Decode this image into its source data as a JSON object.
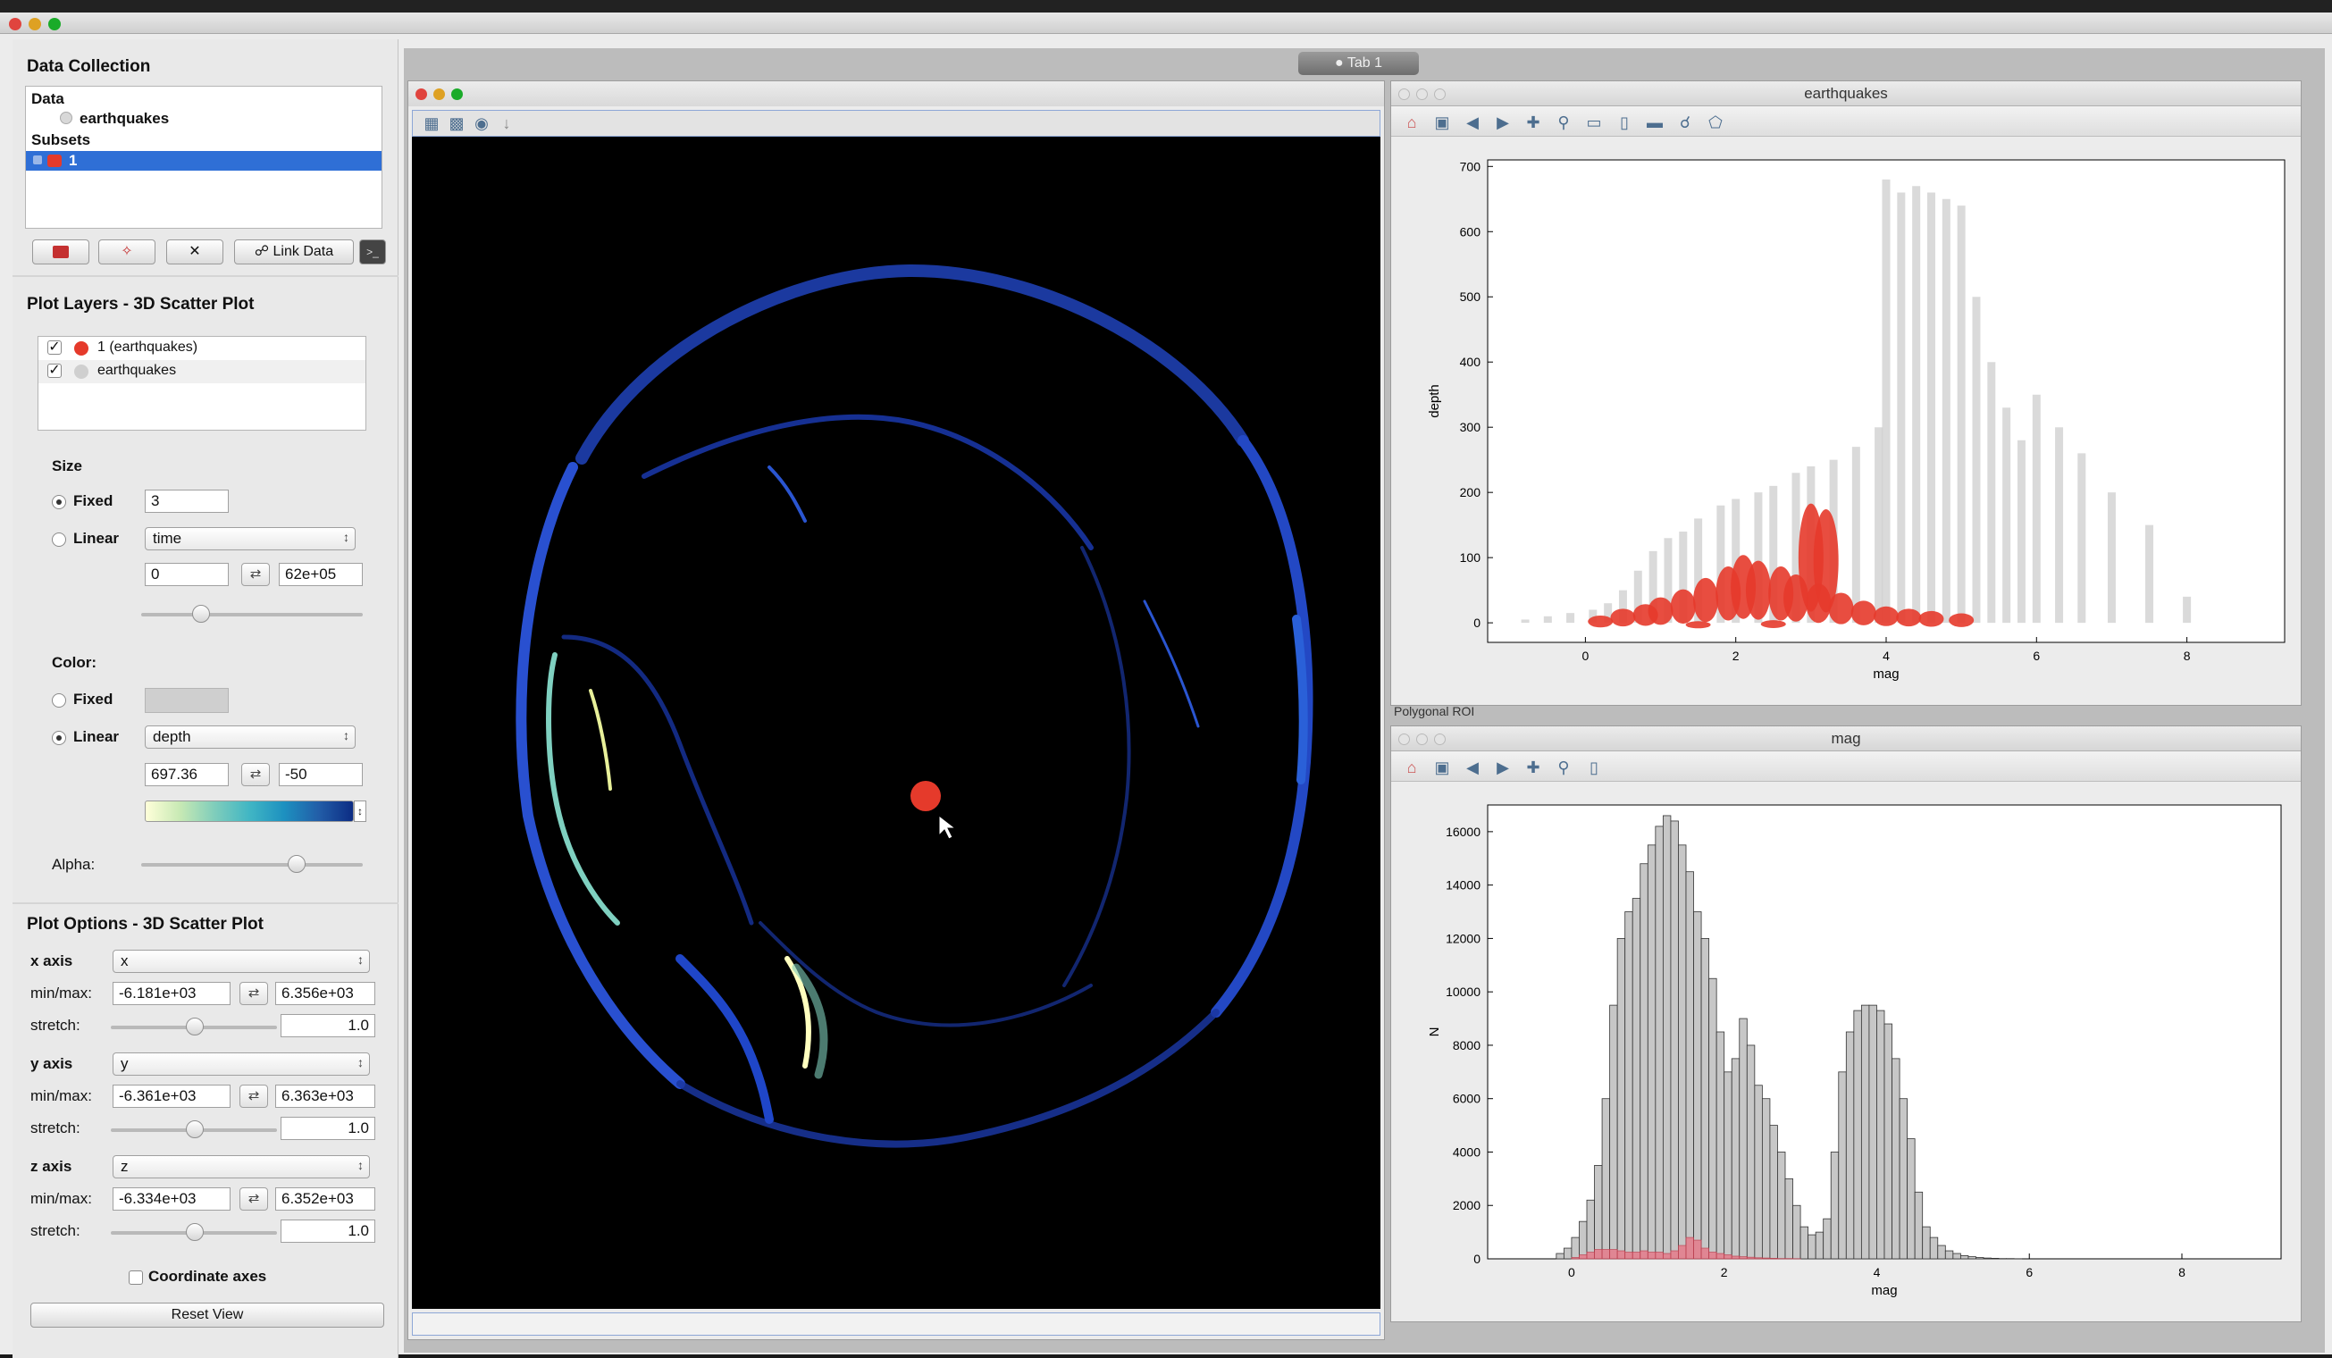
{
  "left_panel": {
    "data_collection_title": "Data Collection",
    "data_header": "Data",
    "data_items": [
      {
        "label": "earthquakes"
      }
    ],
    "subsets_header": "Subsets",
    "subset_items": [
      {
        "label": "1",
        "color": "#e53a2b"
      }
    ],
    "link_data_label": "Link Data",
    "plot_layers_title": "Plot Layers - 3D Scatter Plot",
    "layers": [
      {
        "label": "1 (earthquakes)",
        "checked": true,
        "color": "#e53a2b"
      },
      {
        "label": "earthquakes",
        "checked": true,
        "color": "#c9c9c9"
      }
    ],
    "size": {
      "title": "Size",
      "fixed_label": "Fixed",
      "fixed_value": "3",
      "linear_label": "Linear",
      "linear_attribute": "time",
      "min": "0",
      "max": "62e+05",
      "slider_fraction": 0.25
    },
    "color": {
      "title": "Color:",
      "fixed_label": "Fixed",
      "fixed_swatch": "#cfcfcf",
      "linear_label": "Linear",
      "linear_attribute": "depth",
      "min": "697.36",
      "max": "-50",
      "alpha_label": "Alpha:",
      "alpha_fraction": 0.72
    },
    "plot_options_title": "Plot Options - 3D Scatter Plot",
    "axes": [
      {
        "label": "x axis",
        "attribute": "x",
        "minmax_label": "min/max:",
        "min": "-6.181e+03",
        "max": "6.356e+03",
        "stretch_label": "stretch:",
        "stretch": "1.0"
      },
      {
        "label": "y axis",
        "attribute": "y",
        "minmax_label": "min/max:",
        "min": "-6.361e+03",
        "max": "6.363e+03",
        "stretch_label": "stretch:",
        "stretch": "1.0"
      },
      {
        "label": "z axis",
        "attribute": "z",
        "minmax_label": "min/max:",
        "min": "-6.334e+03",
        "max": "6.352e+03",
        "stretch_label": "stretch:",
        "stretch": "1.0"
      }
    ],
    "coordinate_axes_label": "Coordinate axes",
    "reset_view_label": "Reset View"
  },
  "tab_label": "Tab 1",
  "scatter_window": {
    "title": "earthquakes",
    "status_text": "Polygonal ROI",
    "chart_data": {
      "type": "scatter",
      "xlabel": "mag",
      "ylabel": "depth",
      "xlim": [
        -1.3,
        9.3
      ],
      "ylim": [
        -30,
        710
      ],
      "xticks": [
        0,
        2,
        4,
        6,
        8
      ],
      "yticks": [
        0,
        100,
        200,
        300,
        400,
        500,
        600,
        700
      ],
      "series": [
        {
          "name": "earthquakes",
          "color": "#bdbdbd",
          "points": [
            [
              -0.8,
              5
            ],
            [
              -0.5,
              10
            ],
            [
              -0.2,
              15
            ],
            [
              0.1,
              20
            ],
            [
              0.3,
              30
            ],
            [
              0.5,
              50
            ],
            [
              0.7,
              80
            ],
            [
              0.9,
              110
            ],
            [
              1.1,
              130
            ],
            [
              1.3,
              140
            ],
            [
              1.5,
              160
            ],
            [
              1.8,
              180
            ],
            [
              2.0,
              190
            ],
            [
              2.3,
              200
            ],
            [
              2.5,
              210
            ],
            [
              2.8,
              230
            ],
            [
              3.0,
              240
            ],
            [
              3.3,
              250
            ],
            [
              3.6,
              270
            ],
            [
              3.9,
              300
            ],
            [
              4.0,
              680
            ],
            [
              4.2,
              660
            ],
            [
              4.4,
              670
            ],
            [
              4.6,
              660
            ],
            [
              4.8,
              650
            ],
            [
              5.0,
              640
            ],
            [
              5.2,
              500
            ],
            [
              5.4,
              400
            ],
            [
              5.6,
              330
            ],
            [
              5.8,
              280
            ],
            [
              6.0,
              350
            ],
            [
              6.3,
              300
            ],
            [
              6.6,
              260
            ],
            [
              7.0,
              200
            ],
            [
              7.5,
              150
            ],
            [
              8.0,
              40
            ]
          ]
        },
        {
          "name": "1 (earthquakes)",
          "color": "#e53a2b",
          "points": [
            [
              0.2,
              2
            ],
            [
              0.5,
              8
            ],
            [
              0.8,
              12
            ],
            [
              1.0,
              18
            ],
            [
              1.3,
              25
            ],
            [
              1.6,
              35
            ],
            [
              1.9,
              45
            ],
            [
              2.1,
              55
            ],
            [
              2.3,
              50
            ],
            [
              2.6,
              45
            ],
            [
              2.8,
              38
            ],
            [
              3.1,
              30
            ],
            [
              3.4,
              22
            ],
            [
              3.7,
              15
            ],
            [
              4.0,
              10
            ],
            [
              4.3,
              8
            ],
            [
              4.6,
              6
            ],
            [
              5.0,
              4
            ],
            [
              1.5,
              -3
            ],
            [
              2.5,
              -2
            ],
            [
              3.0,
              100
            ],
            [
              3.2,
              95
            ]
          ]
        }
      ]
    }
  },
  "histogram_window": {
    "title": "mag",
    "chart_data": {
      "type": "bar",
      "xlabel": "mag",
      "ylabel": "N",
      "xlim": [
        -1.1,
        9.3
      ],
      "ylim": [
        0,
        17000
      ],
      "xticks": [
        0,
        2,
        4,
        6,
        8
      ],
      "yticks": [
        0,
        2000,
        4000,
        6000,
        8000,
        10000,
        12000,
        14000,
        16000
      ],
      "bin_start": -0.2,
      "bin_width": 0.1,
      "series": [
        {
          "name": "earthquakes",
          "color": "#c7c7c7",
          "values": [
            200,
            400,
            800,
            1400,
            2200,
            3500,
            6000,
            9500,
            12000,
            13000,
            13500,
            14800,
            15500,
            16200,
            16600,
            16400,
            15500,
            14500,
            13000,
            12000,
            10500,
            8500,
            7000,
            7500,
            9000,
            8000,
            6500,
            6000,
            5000,
            4000,
            3000,
            2000,
            1200,
            900,
            1000,
            1500,
            4000,
            7000,
            8500,
            9300,
            9500,
            9500,
            9300,
            8800,
            7500,
            6000,
            4500,
            2500,
            1200,
            800,
            500,
            300,
            200,
            120,
            80,
            50,
            30,
            20,
            10,
            10,
            5
          ]
        },
        {
          "name": "1 (earthquakes)",
          "color": "#e57b8a",
          "values": [
            0,
            0,
            50,
            150,
            250,
            350,
            350,
            350,
            300,
            250,
            250,
            300,
            250,
            250,
            200,
            300,
            500,
            800,
            700,
            400,
            250,
            200,
            150,
            100,
            80,
            60,
            40,
            30,
            20,
            10,
            10,
            5,
            0,
            0,
            0,
            0,
            0,
            0,
            0,
            0,
            0,
            0,
            0,
            0,
            0,
            0,
            0,
            0,
            0,
            0,
            0,
            0,
            0,
            0,
            0,
            0,
            0,
            0,
            0,
            0,
            0
          ]
        }
      ]
    }
  }
}
